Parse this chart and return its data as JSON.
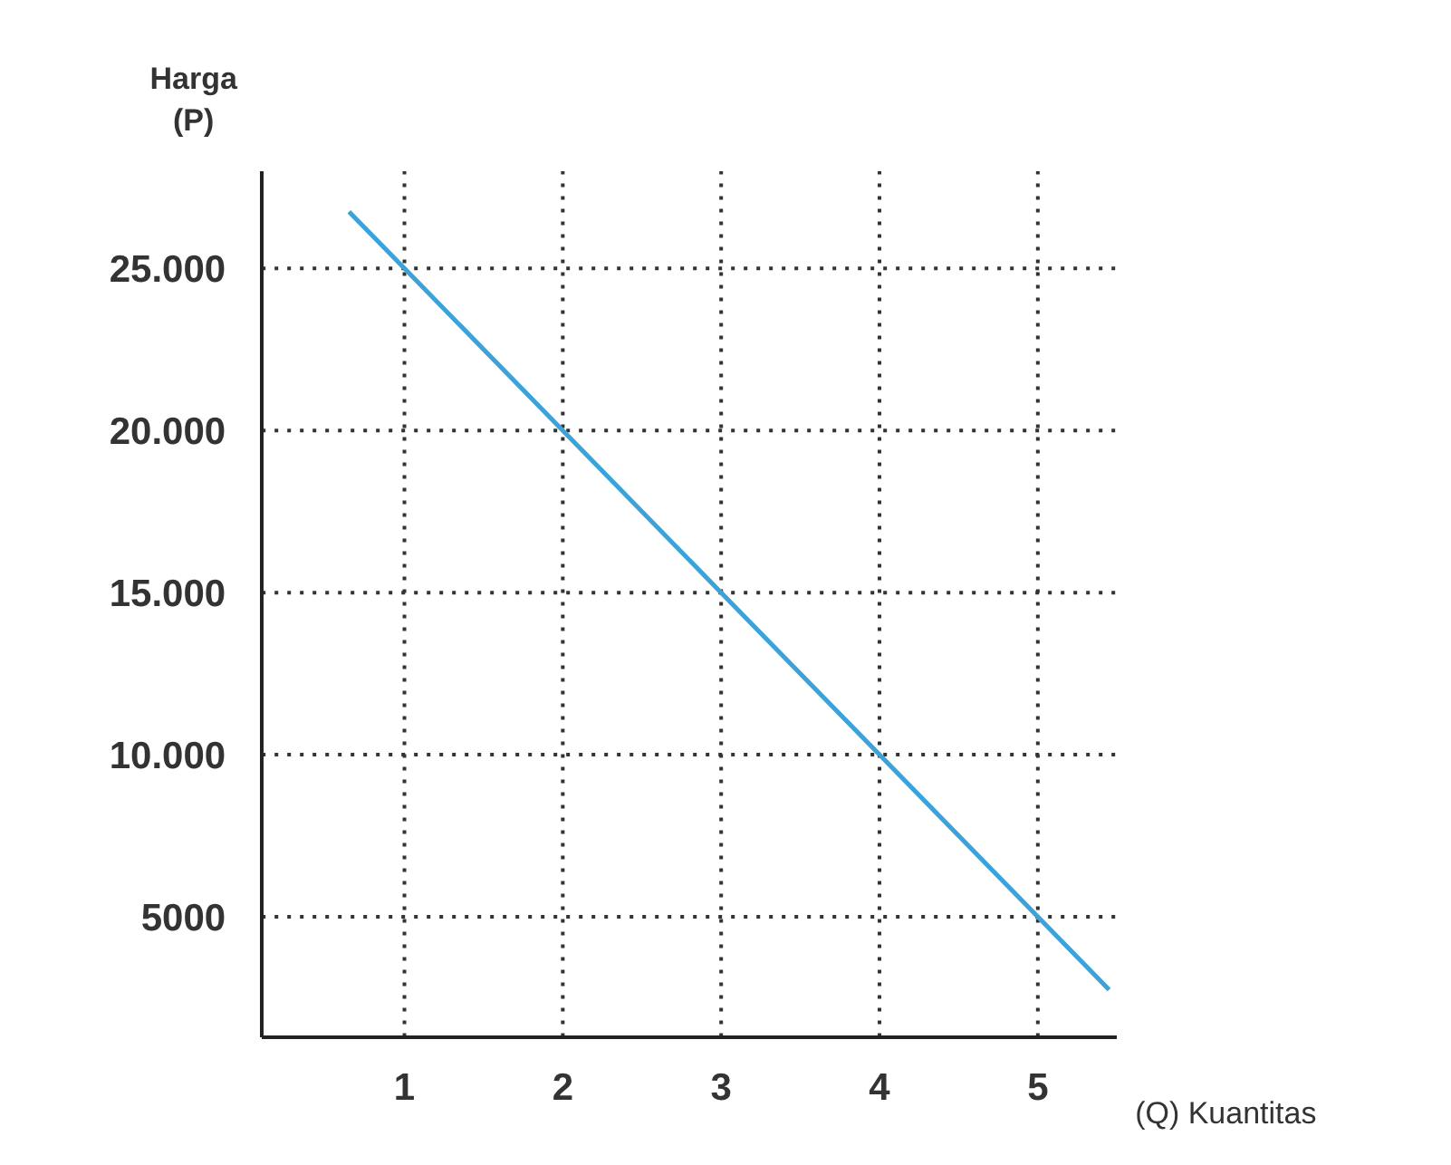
{
  "chart_data": {
    "type": "line",
    "xlabel": "(Q) Kuantitas",
    "ylabel": "Harga\n(P)",
    "x": [
      0.65,
      1,
      2,
      3,
      4,
      5,
      5.45
    ],
    "series": [
      {
        "color": "#3ba3d9",
        "values": [
          26750,
          25000,
          20000,
          15000,
          10000,
          5000,
          2750
        ]
      }
    ],
    "xlim": [
      0.1,
      5.5
    ],
    "ylim": [
      1300,
      28000
    ],
    "xticks": [
      1,
      2,
      3,
      4,
      5
    ],
    "yticks": [
      {
        "value": 5000,
        "label": "5000"
      },
      {
        "value": 10000,
        "label": "10.000"
      },
      {
        "value": 15000,
        "label": "15.000"
      },
      {
        "value": 20000,
        "label": "20.000"
      },
      {
        "value": 25000,
        "label": "25.000"
      }
    ],
    "grid": true,
    "marker": "none",
    "line_style": "solid"
  }
}
